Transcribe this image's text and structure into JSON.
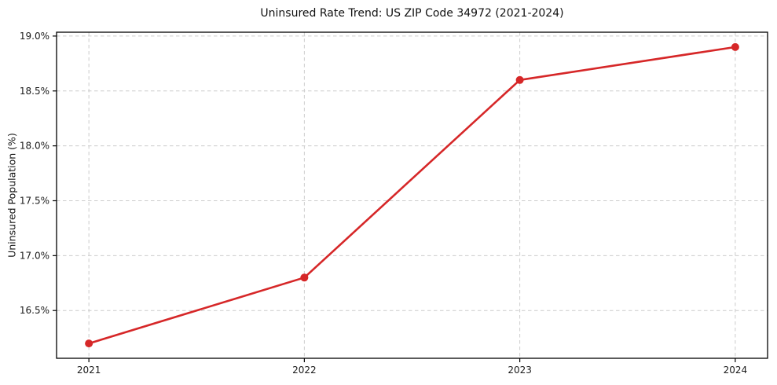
{
  "chart_data": {
    "type": "line",
    "title": "Uninsured Rate Trend: US ZIP Code 34972 (2021-2024)",
    "ylabel": "Uninsured Population (%)",
    "xlabel": "",
    "x": [
      2021,
      2022,
      2023,
      2024
    ],
    "values": [
      16.2,
      16.8,
      18.6,
      18.9
    ],
    "xticks": [
      2021,
      2022,
      2023,
      2024
    ],
    "xtick_labels": [
      "2021",
      "2022",
      "2023",
      "2024"
    ],
    "yticks": [
      16.5,
      17.0,
      17.5,
      18.0,
      18.5,
      19.0
    ],
    "ytick_labels": [
      "16.5%",
      "17.0%",
      "17.5%",
      "18.0%",
      "18.5%",
      "19.0%"
    ],
    "xlim": [
      2020.85,
      2024.15
    ],
    "ylim": [
      16.065,
      19.035
    ],
    "grid": true,
    "legend": "none",
    "colors": {
      "line": "#d62728",
      "marker": "#d62728",
      "grid": "#cccccc",
      "spine": "#000000",
      "tick_text": "#1a1a1a"
    }
  }
}
